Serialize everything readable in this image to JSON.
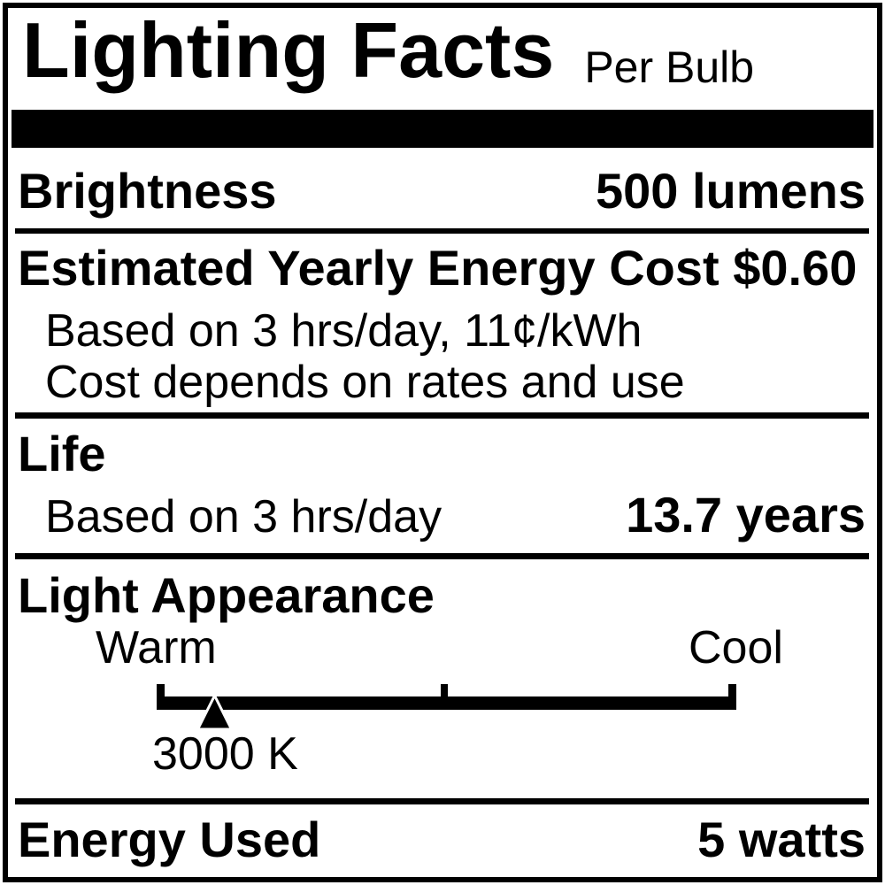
{
  "header": {
    "title": "Lighting Facts",
    "per_unit": "Per Bulb"
  },
  "brightness": {
    "label": "Brightness",
    "value": "500 lumens"
  },
  "energy_cost": {
    "heading": "Estimated Yearly Energy Cost $0.60",
    "basis": "Based on 3 hrs/day, 11¢/kWh",
    "disclaimer": "Cost depends on rates and use"
  },
  "life": {
    "label": "Life",
    "basis": "Based on 3 hrs/day",
    "value": "13.7 years"
  },
  "light_appearance": {
    "label": "Light Appearance",
    "warm_label": "Warm",
    "cool_label": "Cool",
    "color_temperature": "3000 K",
    "marker_percent": 10
  },
  "energy_used": {
    "label": "Energy Used",
    "value": "5 watts"
  },
  "colors": {
    "ink": "#000000",
    "paper": "#ffffff"
  }
}
